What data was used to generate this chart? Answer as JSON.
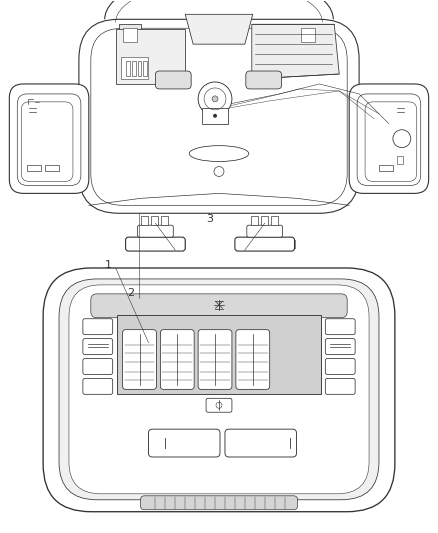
{
  "background_color": "#ffffff",
  "line_color": "#333333",
  "gray_fill": "#e8e8e8",
  "light_fill": "#f5f5f5",
  "label_1": "1",
  "label_2": "2",
  "label_3": "3",
  "fig_width": 4.38,
  "fig_height": 5.33,
  "dpi": 100
}
